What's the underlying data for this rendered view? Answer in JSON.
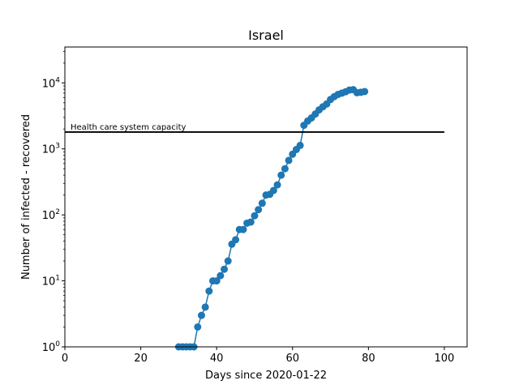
{
  "chart_data": {
    "type": "line",
    "title": "Israel",
    "xlabel": "Days since 2020-01-22",
    "ylabel": "Number of infected - recovered",
    "xlim": [
      0,
      106
    ],
    "ylim": [
      1,
      35000
    ],
    "yscale": "log",
    "x_ticks": [
      0,
      20,
      40,
      60,
      80,
      100
    ],
    "x_tick_labels": [
      "0",
      "20",
      "40",
      "60",
      "80",
      "100"
    ],
    "y_ticks": [
      1,
      10,
      100,
      1000,
      10000
    ],
    "y_tick_labels": [
      {
        "base": "10",
        "exp": "0"
      },
      {
        "base": "10",
        "exp": "1"
      },
      {
        "base": "10",
        "exp": "2"
      },
      {
        "base": "10",
        "exp": "3"
      },
      {
        "base": "10",
        "exp": "4"
      }
    ],
    "grid": false,
    "series_color": "#1f77b4",
    "series": [
      {
        "x": [
          30,
          31,
          32,
          33,
          34,
          35,
          36,
          37,
          38,
          39,
          40,
          41,
          42,
          43,
          44,
          45,
          46,
          47,
          48,
          49,
          50,
          51,
          52,
          53,
          54,
          55,
          56,
          57,
          58,
          59,
          60,
          61,
          62,
          63,
          64,
          65,
          66,
          67,
          68,
          69,
          70,
          71,
          72,
          73,
          74,
          75,
          76,
          77,
          78,
          79
        ],
        "values": [
          1,
          1,
          1,
          1,
          1,
          2,
          3,
          4,
          7,
          10,
          10,
          12,
          15,
          20,
          36,
          42,
          60,
          60,
          75,
          78,
          97,
          120,
          150,
          200,
          205,
          235,
          285,
          400,
          500,
          670,
          830,
          980,
          1130,
          2280,
          2650,
          2950,
          3380,
          3900,
          4350,
          4800,
          5600,
          6200,
          6700,
          7000,
          7350,
          7800,
          7900,
          7100,
          7200,
          7400
        ]
      }
    ],
    "hline": {
      "y": 1800,
      "x_start": 0,
      "x_end": 100,
      "label": "Health care system capacity",
      "color": "#000000"
    }
  }
}
